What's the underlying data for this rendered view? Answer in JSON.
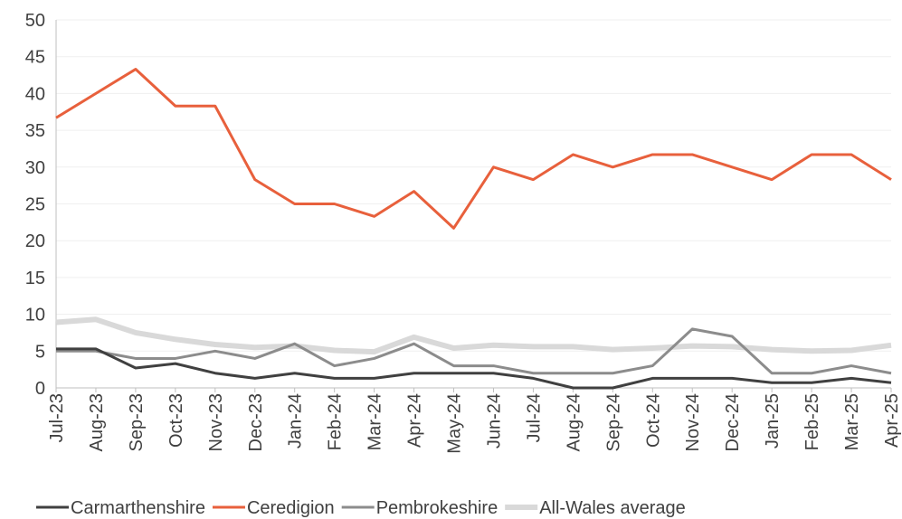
{
  "chart_data": {
    "type": "line",
    "categories": [
      "Jul-23",
      "Aug-23",
      "Sep-23",
      "Oct-23",
      "Nov-23",
      "Dec-23",
      "Jan-24",
      "Feb-24",
      "Mar-24",
      "Apr-24",
      "May-24",
      "Jun-24",
      "Jul-24",
      "Aug-24",
      "Sep-24",
      "Oct-24",
      "Nov-24",
      "Dec-24",
      "Jan-25",
      "Feb-25",
      "Mar-25",
      "Apr-25"
    ],
    "series": [
      {
        "name": "Carmarthenshire",
        "color": "#404040",
        "width": 3,
        "values": [
          5.3,
          5.3,
          2.7,
          3.3,
          2,
          1.3,
          2,
          1.3,
          1.3,
          2,
          2,
          2,
          1.3,
          0,
          0,
          1.3,
          1.3,
          1.3,
          0.7,
          0.7,
          1.3,
          0.7
        ]
      },
      {
        "name": "Ceredigion",
        "color": "#e8603c",
        "width": 3,
        "values": [
          36.7,
          40,
          43.3,
          38.3,
          38.3,
          28.3,
          25,
          25,
          23.3,
          26.7,
          21.7,
          30,
          28.3,
          31.7,
          30,
          31.7,
          31.7,
          30,
          28.3,
          31.7,
          31.7,
          28.3
        ]
      },
      {
        "name": "Pembrokeshire",
        "color": "#8c8c8c",
        "width": 3,
        "values": [
          5,
          5,
          4,
          4,
          5,
          4,
          6,
          3,
          4,
          6,
          3,
          3,
          2,
          2,
          2,
          3,
          8,
          7,
          2,
          2,
          3,
          2
        ]
      },
      {
        "name": "All-Wales average",
        "color": "#d9d9d9",
        "width": 6,
        "values": [
          8.9,
          9.3,
          7.5,
          6.6,
          5.9,
          5.5,
          5.7,
          5.1,
          4.9,
          6.9,
          5.4,
          5.8,
          5.6,
          5.6,
          5.2,
          5.4,
          5.7,
          5.6,
          5.2,
          5.0,
          5.1,
          5.8
        ]
      }
    ],
    "ylim": [
      0,
      50
    ],
    "yticks": [
      0,
      5,
      10,
      15,
      20,
      25,
      30,
      35,
      40,
      45,
      50
    ],
    "grid": true,
    "legend": "bottom"
  }
}
